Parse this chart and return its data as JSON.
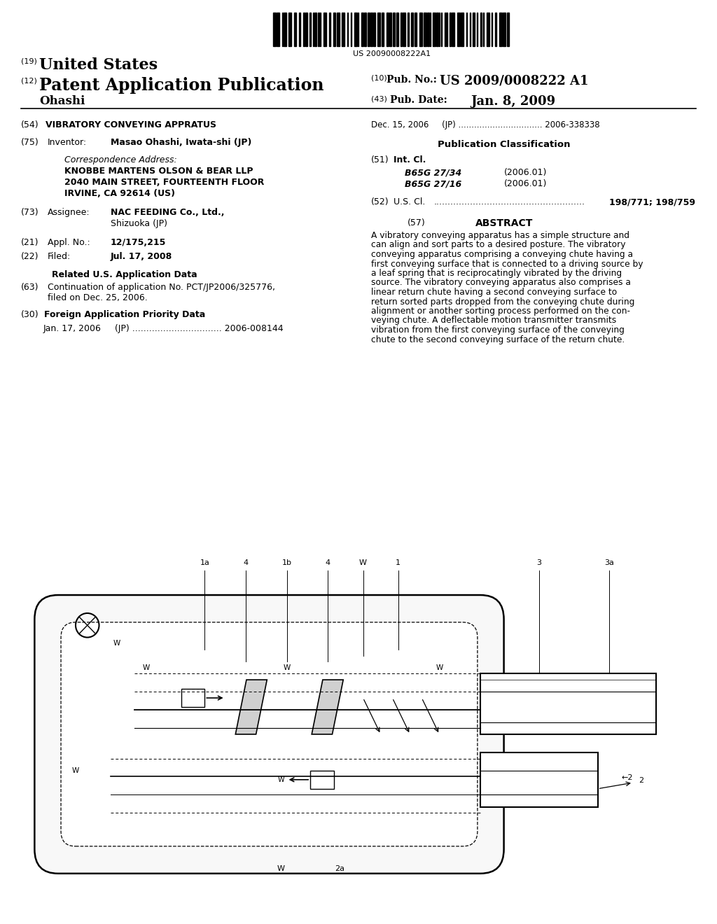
{
  "background_color": "#ffffff",
  "text_color": "#000000",
  "barcode_number": "US 20090008222A1",
  "header": {
    "number19": "(19)",
    "united_states": "United States",
    "number12": "(12)",
    "patent_app_pub": "Patent Application Publication",
    "number10": "(10)",
    "pub_no_label": "Pub. No.:",
    "pub_no_value": "US 2009/0008222 A1",
    "inventor": "Ohashi",
    "number43": "(43)",
    "pub_date_label": "Pub. Date:",
    "pub_date_value": "Jan. 8, 2009"
  },
  "left_col": {
    "s54_num": "(54)",
    "s54_text": "VIBRATORY CONVEYING APPRATUS",
    "s75_num": "(75)",
    "s75_label": "Inventor:",
    "s75_value": "Masao Ohashi, Iwata-shi (JP)",
    "corr_label": "Correspondence Address:",
    "corr_line1": "KNOBBE MARTENS OLSON & BEAR LLP",
    "corr_line2": "2040 MAIN STREET, FOURTEENTH FLOOR",
    "corr_line3": "IRVINE, CA 92614 (US)",
    "s73_num": "(73)",
    "s73_label": "Assignee:",
    "s73_value1": "NAC FEEDING Co., Ltd.,",
    "s73_value2": "Shizuoka (JP)",
    "s21_num": "(21)",
    "s21_label": "Appl. No.:",
    "s21_value": "12/175,215",
    "s22_num": "(22)",
    "s22_label": "Filed:",
    "s22_value": "Jul. 17, 2008",
    "related_header": "Related U.S. Application Data",
    "s63_num": "(63)",
    "s63_line1": "Continuation of application No. PCT/JP2006/325776,",
    "s63_line2": "filed on Dec. 25, 2006.",
    "s30_num": "(30)",
    "s30_header": "Foreign Application Priority Data",
    "s30_line": "Jan. 17, 2006     (JP) ................................ 2006-008144"
  },
  "right_col_top": {
    "priority_line1": "Dec. 15, 2006     (JP) ................................ 2006-338338",
    "pub_class_header": "Publication Classification",
    "s51_num": "(51)",
    "s51_label": "Int. Cl.",
    "s51_line1_class": "B65G 27/34",
    "s51_line1_year": "(2006.01)",
    "s51_line2_class": "B65G 27/16",
    "s51_line2_year": "(2006.01)",
    "s52_num": "(52)",
    "s52_label": "U.S. Cl.",
    "s52_dots": "......................................................",
    "s52_value": "198/771; 198/759",
    "s57_num": "(57)",
    "s57_header": "ABSTRACT",
    "abstract_lines": [
      "A vibratory conveying apparatus has a simple structure and",
      "can align and sort parts to a desired posture. The vibratory",
      "conveying apparatus comprising a conveying chute having a",
      "first conveying surface that is connected to a driving source by",
      "a leaf spring that is reciprocatingly vibrated by the driving",
      "source. The vibratory conveying apparatus also comprises a",
      "linear return chute having a second conveying surface to",
      "return sorted parts dropped from the conveying chute during",
      "alignment or another sorting process performed on the con-",
      "veying chute. A deflectable motion transmitter transmits",
      "vibration from the first conveying surface of the conveying",
      "chute to the second conveying surface of the return chute."
    ]
  }
}
